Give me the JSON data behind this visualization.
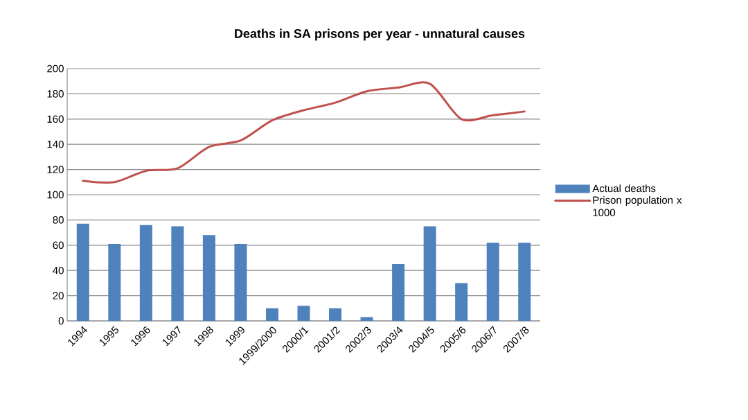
{
  "chart_data": {
    "type": "bar",
    "title": "Deaths in SA prisons  per year - unnatural causes",
    "categories": [
      "1994",
      "1995",
      "1996",
      "1997",
      "1998",
      "1999",
      "1999/2000",
      "2000/1",
      "2001/2",
      "2002/3",
      "2003/4",
      "2004/5",
      "2005/6",
      "2006/7",
      "2007/8"
    ],
    "series": [
      {
        "name": "Actual deaths",
        "color": "#4f81bd",
        "values": [
          77,
          61,
          76,
          75,
          68,
          61,
          10,
          12,
          10,
          3,
          45,
          75,
          30,
          62,
          62
        ]
      },
      {
        "name": "Prison population x 1000",
        "type": "line",
        "color": "#c0504d",
        "values": [
          111,
          110,
          119,
          121,
          138,
          143,
          159,
          167,
          173,
          182,
          185,
          188,
          160,
          163,
          166
        ]
      }
    ],
    "ylim": [
      0,
      200
    ],
    "yticks": [
      0,
      20,
      40,
      60,
      80,
      100,
      120,
      140,
      160,
      180,
      200
    ],
    "grid": "y",
    "legend": "right",
    "marker": "none",
    "line_style": "solid"
  }
}
